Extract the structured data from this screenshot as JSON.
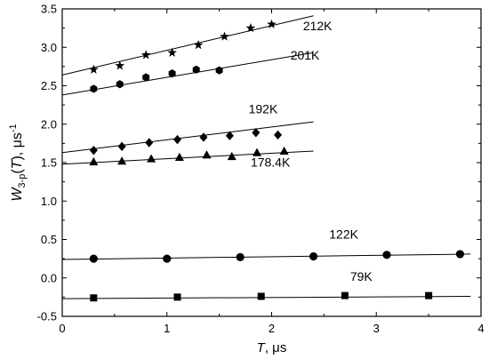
{
  "chart_data": {
    "type": "scatter",
    "title": "",
    "xlabel": {
      "symbol": "T",
      "unit": ", μs"
    },
    "ylabel": {
      "symbol": "W",
      "subscript": "3-p",
      "argument": "(T)",
      "unit": ", μs",
      "unit_superscript": "-1"
    },
    "xlim": [
      0,
      4
    ],
    "ylim": [
      -0.5,
      3.5
    ],
    "xticks": [
      0,
      1,
      2,
      3,
      4
    ],
    "yticks": [
      -0.5,
      0.0,
      0.5,
      1.0,
      1.5,
      2.0,
      2.5,
      3.0,
      3.5
    ],
    "xtick_labels": [
      "0",
      "1",
      "2",
      "3",
      "4"
    ],
    "ytick_labels": [
      "-0.5",
      "0.0",
      "0.5",
      "1.0",
      "1.5",
      "2.0",
      "2.5",
      "3.0",
      "3.5"
    ],
    "grid": false,
    "legend": "none",
    "series": [
      {
        "name": "212K",
        "marker": "star",
        "x": [
          0.3,
          0.55,
          0.8,
          1.05,
          1.3,
          1.55,
          1.8,
          2.0
        ],
        "y": [
          2.71,
          2.76,
          2.9,
          2.93,
          3.03,
          3.14,
          3.25,
          3.3
        ],
        "fit": {
          "x": [
            0.0,
            2.4
          ],
          "y": [
            2.64,
            3.41
          ]
        },
        "label_at": {
          "x": 2.3,
          "y": 3.22
        }
      },
      {
        "name": "201K",
        "marker": "hexagon",
        "x": [
          0.3,
          0.55,
          0.8,
          1.05,
          1.28,
          1.5
        ],
        "y": [
          2.46,
          2.52,
          2.61,
          2.66,
          2.71,
          2.7
        ],
        "fit": {
          "x": [
            0.0,
            2.4
          ],
          "y": [
            2.38,
            2.93
          ]
        },
        "label_at": {
          "x": 2.18,
          "y": 2.84
        }
      },
      {
        "name": "192K",
        "marker": "diamond",
        "x": [
          0.3,
          0.57,
          0.83,
          1.1,
          1.35,
          1.6,
          1.85,
          2.06
        ],
        "y": [
          1.66,
          1.71,
          1.76,
          1.8,
          1.83,
          1.85,
          1.89,
          1.86
        ],
        "fit": {
          "x": [
            0.0,
            2.4
          ],
          "y": [
            1.63,
            2.03
          ]
        },
        "label_at": {
          "x": 1.78,
          "y": 2.14
        }
      },
      {
        "name": "178.4K",
        "marker": "triangle",
        "x": [
          0.3,
          0.57,
          0.85,
          1.12,
          1.38,
          1.62,
          1.86,
          2.12
        ],
        "y": [
          1.51,
          1.52,
          1.55,
          1.57,
          1.6,
          1.58,
          1.63,
          1.65
        ],
        "fit": {
          "x": [
            0.0,
            2.4
          ],
          "y": [
            1.48,
            1.65
          ]
        },
        "label_at": {
          "x": 1.8,
          "y": 1.45
        }
      },
      {
        "name": "122K",
        "marker": "circle",
        "x": [
          0.3,
          1.0,
          1.7,
          2.4,
          3.1,
          3.8
        ],
        "y": [
          0.25,
          0.25,
          0.27,
          0.28,
          0.3,
          0.31
        ],
        "fit": {
          "x": [
            0.0,
            3.9
          ],
          "y": [
            0.24,
            0.31
          ]
        },
        "label_at": {
          "x": 2.55,
          "y": 0.51
        }
      },
      {
        "name": "79K",
        "marker": "square",
        "x": [
          0.3,
          1.1,
          1.9,
          2.7,
          3.5
        ],
        "y": [
          -0.26,
          -0.25,
          -0.24,
          -0.23,
          -0.23
        ],
        "fit": {
          "x": [
            0.0,
            3.9
          ],
          "y": [
            -0.27,
            -0.24
          ]
        },
        "label_at": {
          "x": 2.75,
          "y": -0.04
        }
      }
    ]
  }
}
